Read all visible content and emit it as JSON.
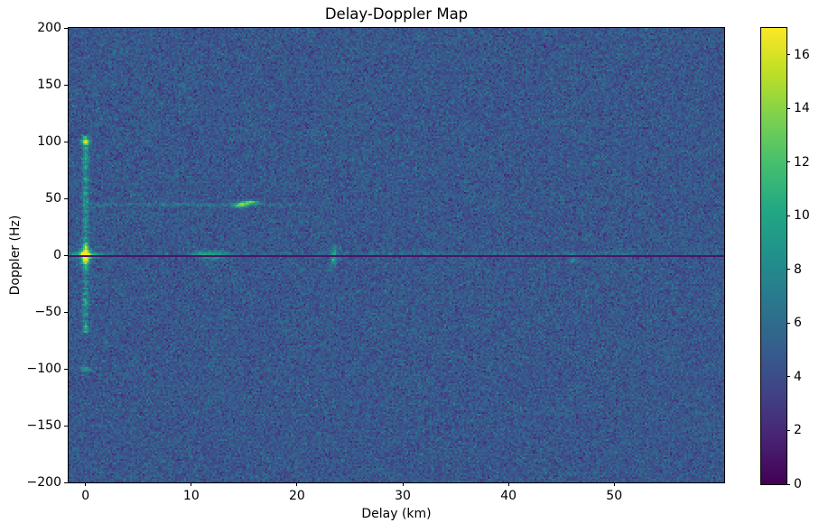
{
  "chart_data": {
    "type": "heatmap",
    "title": "Delay-Doppler Map",
    "xlabel": "Delay (km)",
    "ylabel": "Doppler (Hz)",
    "xlim": [
      -1.6,
      60.4
    ],
    "ylim": [
      -200,
      200
    ],
    "grid_on": false,
    "legend": "none",
    "xticks": [
      {
        "value": 0,
        "label": "0"
      },
      {
        "value": 10,
        "label": "10"
      },
      {
        "value": 20,
        "label": "20"
      },
      {
        "value": 30,
        "label": "30"
      },
      {
        "value": 40,
        "label": "40"
      },
      {
        "value": 50,
        "label": "50"
      }
    ],
    "yticks": [
      {
        "value": 200,
        "label": "200"
      },
      {
        "value": 150,
        "label": "150"
      },
      {
        "value": 100,
        "label": "100"
      },
      {
        "value": 50,
        "label": "50"
      },
      {
        "value": 0,
        "label": "0"
      },
      {
        "value": -50,
        "label": "−50"
      },
      {
        "value": -100,
        "label": "−100"
      },
      {
        "value": -150,
        "label": "−150"
      },
      {
        "value": -200,
        "label": "−200"
      }
    ],
    "colormap": "viridis",
    "colormap_stops": [
      [
        0.0,
        "#440154"
      ],
      [
        0.1,
        "#482475"
      ],
      [
        0.2,
        "#414487"
      ],
      [
        0.3,
        "#355f8d"
      ],
      [
        0.4,
        "#2a788e"
      ],
      [
        0.5,
        "#21918c"
      ],
      [
        0.6,
        "#22a884"
      ],
      [
        0.7,
        "#44bf70"
      ],
      [
        0.8,
        "#7ad151"
      ],
      [
        0.9,
        "#bddf26"
      ],
      [
        1.0,
        "#fde725"
      ]
    ],
    "colorbar": {
      "vmin": 0,
      "vmax": 17,
      "ticks": [
        {
          "value": 0,
          "label": "0"
        },
        {
          "value": 2,
          "label": "2"
        },
        {
          "value": 4,
          "label": "4"
        },
        {
          "value": 6,
          "label": "6"
        },
        {
          "value": 8,
          "label": "8"
        },
        {
          "value": 10,
          "label": "10"
        },
        {
          "value": 12,
          "label": "12"
        },
        {
          "value": 14,
          "label": "14"
        },
        {
          "value": 16,
          "label": "16"
        }
      ]
    },
    "background_noise": {
      "mean": 4.6,
      "std": 0.95,
      "clamp": [
        1.6,
        8.8
      ],
      "seed": 20,
      "grid_cols": 363,
      "grid_rows": 252
    },
    "features": [
      {
        "kind": "vline",
        "label": "zero-delay doppler sidelobe column",
        "delay": 0,
        "sigma_delay": 0.2,
        "doppler_range": [
          -66,
          106
        ],
        "amplitude": 3.4,
        "jitter": 1.2
      },
      {
        "kind": "gaussian",
        "label": "direct-path peak",
        "delay": 0,
        "doppler": 0,
        "sigma_delay": 0.35,
        "sigma_doppler": 5.5,
        "amplitude": 10
      },
      {
        "kind": "gaussian",
        "label": "direct-path core glow",
        "delay": 0,
        "doppler": 0,
        "sigma_delay": 1.1,
        "sigma_doppler": 1.6,
        "amplitude": 7
      },
      {
        "kind": "gaussian",
        "label": "doppler ambiguity spot +100 Hz",
        "delay": 0,
        "doppler": 100,
        "sigma_delay": 0.3,
        "sigma_doppler": 2.0,
        "amplitude": 7
      },
      {
        "kind": "gaussian",
        "label": "doppler ambiguity spot -100 Hz",
        "delay": 0,
        "doppler": -100,
        "sigma_delay": 0.3,
        "sigma_doppler": 1.6,
        "amplitude": 5
      },
      {
        "kind": "hline",
        "label": "clutter ridge ~45 Hz (0-24 km)",
        "doppler": 44.5,
        "sigma_doppler": 0.8,
        "delay_range": [
          -0.3,
          24
        ],
        "amplitude": 2.2,
        "jitter": 0.9,
        "fade_tail": 6
      },
      {
        "kind": "gaussian",
        "label": "target echo blob left lobe",
        "delay": 14.6,
        "doppler": 43.8,
        "sigma_delay": 0.45,
        "sigma_doppler": 1.5,
        "amplitude": 8.5
      },
      {
        "kind": "gaussian",
        "label": "target echo blob right lobe",
        "delay": 15.5,
        "doppler": 46.4,
        "sigma_delay": 0.55,
        "sigma_doppler": 1.2,
        "amplitude": 9.5
      },
      {
        "kind": "gaussian",
        "label": "clutter patch 10.7 km",
        "delay": 10.7,
        "doppler": 0.8,
        "sigma_delay": 0.4,
        "sigma_doppler": 1.8,
        "amplitude": 2.6
      },
      {
        "kind": "gaussian",
        "label": "clutter patch 11.3 km",
        "delay": 11.3,
        "doppler": 0.3,
        "sigma_delay": 0.5,
        "sigma_doppler": 2.4,
        "amplitude": 3.6
      },
      {
        "kind": "gaussian",
        "label": "clutter patch 12.3 km",
        "delay": 12.3,
        "doppler": -0.4,
        "sigma_delay": 0.55,
        "sigma_doppler": 2.6,
        "amplitude": 4.2
      },
      {
        "kind": "gaussian",
        "label": "clutter patch 13.3 km",
        "delay": 13.3,
        "doppler": 0.2,
        "sigma_delay": 0.45,
        "sigma_doppler": 1.8,
        "amplitude": 2.2
      },
      {
        "kind": "gaussian",
        "label": "target streak 23.5 km",
        "delay": 23.5,
        "doppler": -1,
        "sigma_delay": 0.2,
        "sigma_doppler": 6,
        "amplitude": 5.6
      },
      {
        "kind": "hline",
        "label": "zero-doppler residual full width",
        "doppler": 1.6,
        "sigma_doppler": 0.7,
        "delay_range": [
          -1.6,
          60.4
        ],
        "amplitude": 1.0,
        "jitter": 0.6
      },
      {
        "kind": "hline",
        "label": "zero-doppler residual bright 26-52 km",
        "doppler": 1.6,
        "sigma_doppler": 0.6,
        "delay_range": [
          26,
          52
        ],
        "amplitude": 1.5,
        "jitter": 0.7
      },
      {
        "kind": "gaussian",
        "label": "small echo 46 km",
        "delay": 46.2,
        "doppler": -4,
        "sigma_delay": 0.28,
        "sigma_doppler": 1.8,
        "amplitude": 3.8
      },
      {
        "kind": "notch",
        "label": "zero-doppler suppression notch",
        "doppler_range": [
          -1.5,
          0.5
        ],
        "value": 1.0
      }
    ]
  }
}
